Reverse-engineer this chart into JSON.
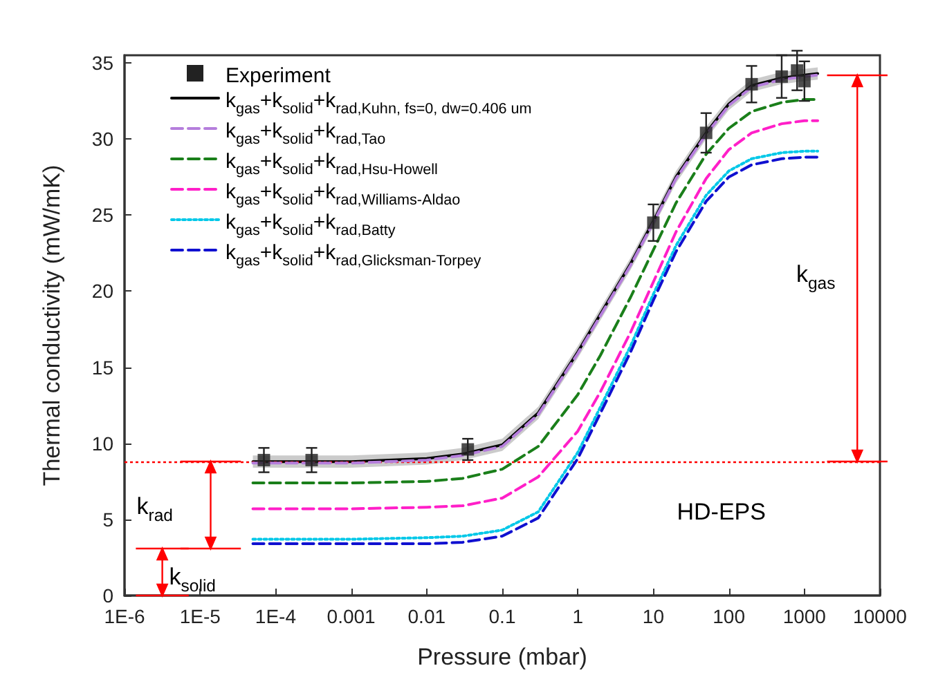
{
  "chart_data": {
    "type": "line",
    "xlabel": "Pressure (mbar)",
    "ylabel": "Thermal conductivity (mW/mK)",
    "log": "x",
    "xlim": [
      1e-06,
      10000
    ],
    "xticks": [
      {
        "value": 1e-06,
        "label": "1E-6"
      },
      {
        "value": 1e-05,
        "label": "1E-5"
      },
      {
        "value": 0.0001,
        "label": "1E-4"
      },
      0.001,
      0.01,
      0.1,
      1,
      10,
      100,
      1000,
      10000
    ],
    "ylim": [
      0,
      35.5
    ],
    "yticks": [
      0,
      5,
      10,
      15,
      20,
      25,
      30,
      35
    ],
    "grid": false,
    "legend": "top left",
    "x": [
      5e-05,
      0.0001,
      0.001,
      0.01,
      0.03,
      0.1,
      0.3,
      1,
      2,
      5,
      10,
      20,
      50,
      100,
      200,
      500,
      1000,
      1500
    ],
    "series": [
      {
        "name": "Experiment",
        "type": "scatter",
        "marker": "square",
        "color": "#222222",
        "x": [
          7e-05,
          0.0003,
          0.035,
          10,
          50,
          200,
          500,
          800,
          1000
        ],
        "values": [
          8.9,
          8.9,
          9.6,
          24.5,
          30.4,
          33.6,
          34.1,
          34.5,
          33.8
        ],
        "errors": [
          0.8,
          0.8,
          0.7,
          1.2,
          1.3,
          1.2,
          1.4,
          1.3,
          1.3
        ]
      },
      {
        "name": "k$_{gas}$+k$_{solid}$+k$_{rad,Kuhn, fs=0, dw=0.406 um}$",
        "color": "#000000",
        "line_style": "solid",
        "marker": "none",
        "values": [
          8.8,
          8.8,
          8.8,
          9.0,
          9.3,
          9.9,
          12.0,
          16.0,
          18.5,
          21.8,
          24.6,
          27.5,
          30.4,
          32.3,
          33.5,
          34.0,
          34.2,
          34.3
        ],
        "lower": [
          8.4,
          8.4,
          8.4,
          8.6,
          8.9,
          9.5,
          11.6,
          15.6,
          18.1,
          21.4,
          24.2,
          27.1,
          30.0,
          31.9,
          33.1,
          33.6,
          33.8,
          33.9
        ],
        "upper": [
          9.2,
          9.2,
          9.2,
          9.4,
          9.7,
          10.3,
          12.4,
          16.4,
          18.9,
          22.2,
          25.0,
          27.9,
          30.8,
          32.7,
          33.9,
          34.4,
          34.6,
          34.7
        ]
      },
      {
        "name": "k$_{gas}$+k$_{solid}$+k$_{rad,Tao}$",
        "color": "#b57edc",
        "line_style": "dashed",
        "marker": "none",
        "values": [
          8.7,
          8.7,
          8.7,
          8.9,
          9.2,
          9.8,
          11.9,
          15.9,
          18.4,
          21.7,
          24.5,
          27.4,
          30.3,
          32.2,
          33.4,
          33.9,
          34.1,
          34.2
        ]
      },
      {
        "name": "k$_{gas}$+k$_{solid}$+k$_{rad,Hsu-Howell}$",
        "color": "#1a7f1a",
        "line_style": "dashed",
        "marker": "none",
        "values": [
          7.4,
          7.4,
          7.4,
          7.5,
          7.7,
          8.3,
          9.8,
          13.2,
          15.8,
          19.6,
          22.7,
          25.8,
          29.0,
          30.7,
          31.8,
          32.4,
          32.6,
          32.6
        ]
      },
      {
        "name": "k$_{gas}$+k$_{solid}$+k$_{rad,Williams-Aldao}$",
        "color": "#ff1fc8",
        "line_style": "dashed",
        "marker": "none",
        "values": [
          5.7,
          5.7,
          5.7,
          5.8,
          5.9,
          6.4,
          7.8,
          10.8,
          13.4,
          17.3,
          20.6,
          23.9,
          27.4,
          29.3,
          30.4,
          31.0,
          31.2,
          31.2
        ]
      },
      {
        "name": "k$_{gas}$+k$_{solid}$+k$_{rad,Batty}$",
        "color": "#00c8e8",
        "line_style": "dotted",
        "marker": "none",
        "values": [
          3.7,
          3.7,
          3.7,
          3.8,
          3.9,
          4.3,
          5.5,
          9.4,
          12.4,
          16.4,
          19.8,
          23.0,
          26.3,
          27.9,
          28.7,
          29.1,
          29.2,
          29.2
        ]
      },
      {
        "name": "k$_{gas}$+k$_{solid}$+k$_{rad,Glicksman-Torpey}$",
        "color": "#1010d0",
        "line_style": "dashed",
        "marker": "none",
        "values": [
          3.4,
          3.4,
          3.4,
          3.4,
          3.5,
          3.9,
          5.1,
          9.0,
          12.0,
          16.0,
          19.4,
          22.6,
          25.9,
          27.5,
          28.3,
          28.7,
          28.8,
          28.8
        ]
      }
    ],
    "ref_lines": [
      {
        "axis": "y",
        "value": 8.8,
        "color": "#ff0000",
        "line_style": "dotted"
      }
    ],
    "annotations": [
      "HD-EPS",
      "k$_{solid}$",
      "k$_{rad}$",
      "k$_{gas}$"
    ]
  }
}
